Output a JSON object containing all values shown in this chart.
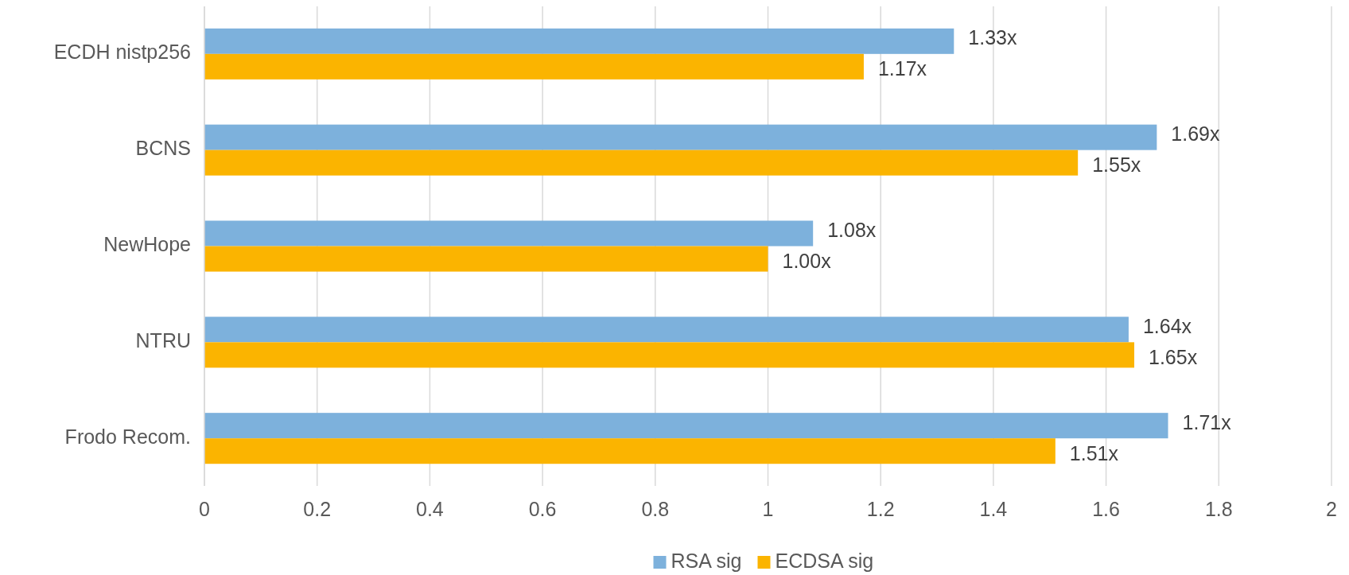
{
  "chart_data": {
    "type": "bar",
    "orientation": "horizontal",
    "categories": [
      "ECDH nistp256",
      "BCNS",
      "NewHope",
      "NTRU",
      "Frodo Recom."
    ],
    "series": [
      {
        "name": "RSA sig",
        "color": "#7db1dc",
        "values": [
          1.33,
          1.69,
          1.08,
          1.64,
          1.71
        ],
        "value_labels": [
          "1.33x",
          "1.69x",
          "1.08x",
          "1.64x",
          "1.71x"
        ]
      },
      {
        "name": "ECDSA sig",
        "color": "#fbb400",
        "values": [
          1.17,
          1.55,
          1.0,
          1.65,
          1.51
        ],
        "value_labels": [
          "1.17x",
          "1.55x",
          "1.00x",
          "1.65x",
          "1.51x"
        ]
      }
    ],
    "xlim": [
      0,
      2
    ],
    "xticks": [
      0,
      0.2,
      0.4,
      0.6,
      0.8,
      1,
      1.2,
      1.4,
      1.6,
      1.8,
      2
    ],
    "grid": "x",
    "legend": "bottom"
  }
}
